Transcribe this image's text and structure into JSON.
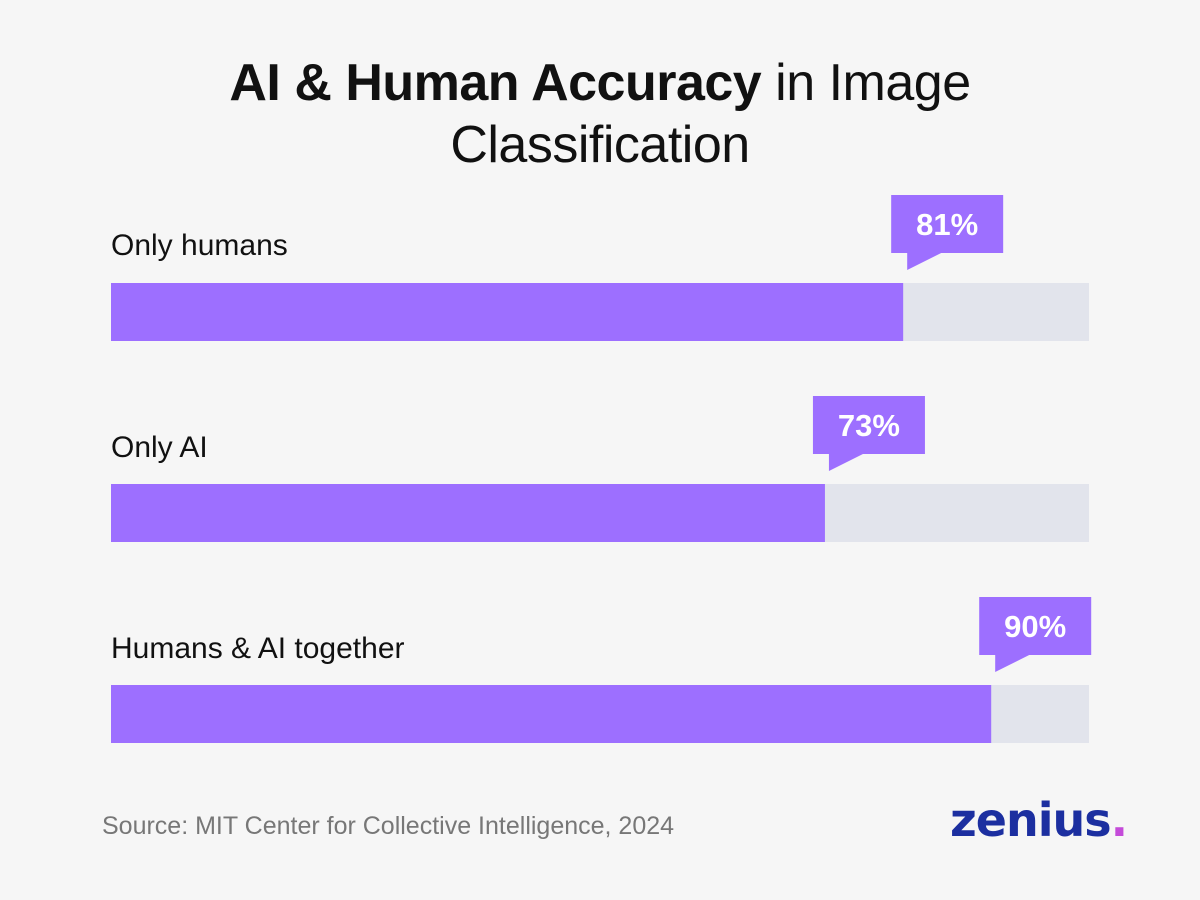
{
  "title": {
    "bold": "AI & Human Accuracy",
    "light_line1": " in Image",
    "light_line2": "Classification"
  },
  "chart_data": {
    "type": "bar",
    "orientation": "horizontal",
    "categories": [
      "Only humans",
      "Only AI",
      "Humans & AI together"
    ],
    "values": [
      81,
      73,
      90
    ],
    "value_labels": [
      "81%",
      "73%",
      "90%"
    ],
    "xlim": [
      0,
      100
    ],
    "unit": "%",
    "grid": false,
    "legend": "none"
  },
  "colors": {
    "bar_fill": "#9d6fff",
    "bar_track": "#e2e4ec",
    "callout": "#9d6fff",
    "callout_text": "#ffffff",
    "title": "#111111",
    "source": "#777777",
    "logo_text": "#1c2fa0",
    "logo_dot": "#c44bd9"
  },
  "footer": {
    "source": "Source: MIT Center for Collective Intelligence, 2024",
    "logo_word": "zenius",
    "logo_dot": "."
  }
}
